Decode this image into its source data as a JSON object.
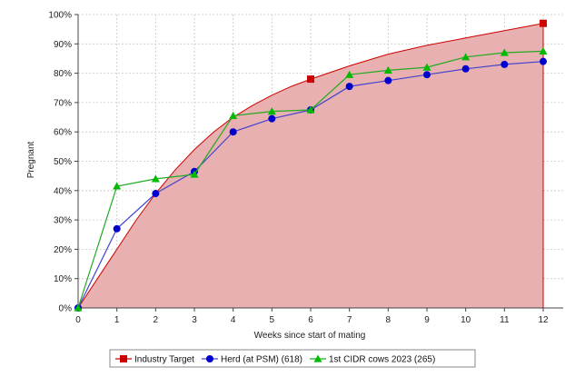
{
  "chart_data": {
    "type": "line",
    "title": "",
    "xlabel": "Weeks since start of mating",
    "ylabel": "Pregnant",
    "xlim": [
      0,
      12
    ],
    "ylim": [
      0,
      100
    ],
    "x_ticks": [
      "0",
      "1",
      "2",
      "3",
      "4",
      "5",
      "6",
      "7",
      "8",
      "9",
      "10",
      "11",
      "12"
    ],
    "y_ticks": [
      "0%",
      "10%",
      "20%",
      "30%",
      "40%",
      "50%",
      "60%",
      "70%",
      "80%",
      "90%",
      "100%"
    ],
    "grid": true,
    "legend_position": "bottom",
    "series": [
      {
        "name": "Industry Target",
        "kind": "area-curve",
        "color": "#cc0000",
        "fill": "#e8b0b0",
        "marker": "square",
        "curve": [
          {
            "x": 0,
            "y": 0
          },
          {
            "x": 0.5,
            "y": 10
          },
          {
            "x": 1,
            "y": 20
          },
          {
            "x": 1.5,
            "y": 30
          },
          {
            "x": 2,
            "y": 39
          },
          {
            "x": 2.5,
            "y": 47
          },
          {
            "x": 3,
            "y": 54
          },
          {
            "x": 3.5,
            "y": 60
          },
          {
            "x": 4,
            "y": 65
          },
          {
            "x": 4.5,
            "y": 69
          },
          {
            "x": 5,
            "y": 72.5
          },
          {
            "x": 5.5,
            "y": 75.5
          },
          {
            "x": 6,
            "y": 78
          },
          {
            "x": 7,
            "y": 82.5
          },
          {
            "x": 8,
            "y": 86.5
          },
          {
            "x": 9,
            "y": 89.5
          },
          {
            "x": 10,
            "y": 92
          },
          {
            "x": 11,
            "y": 94.5
          },
          {
            "x": 12,
            "y": 97
          }
        ],
        "markers": [
          {
            "x": 6,
            "y": 78
          },
          {
            "x": 12,
            "y": 97
          }
        ]
      },
      {
        "name": "Herd (at PSM) (618)",
        "kind": "line",
        "color": "#0000cc",
        "line_color": "#4444cc",
        "marker": "circle",
        "points": [
          {
            "x": 0,
            "y": 0
          },
          {
            "x": 1,
            "y": 27
          },
          {
            "x": 2,
            "y": 39
          },
          {
            "x": 3,
            "y": 46.5
          },
          {
            "x": 4,
            "y": 60
          },
          {
            "x": 5,
            "y": 64.5
          },
          {
            "x": 6,
            "y": 67.5
          },
          {
            "x": 7,
            "y": 75.5
          },
          {
            "x": 8,
            "y": 77.5
          },
          {
            "x": 9,
            "y": 79.5
          },
          {
            "x": 10,
            "y": 81.5
          },
          {
            "x": 11,
            "y": 83
          },
          {
            "x": 12,
            "y": 84
          }
        ]
      },
      {
        "name": "1st CIDR cows 2023 (265)",
        "kind": "line",
        "color": "#00bb00",
        "line_color": "#22aa22",
        "marker": "triangle",
        "points": [
          {
            "x": 0,
            "y": 0
          },
          {
            "x": 1,
            "y": 41.5
          },
          {
            "x": 2,
            "y": 44
          },
          {
            "x": 3,
            "y": 45.5
          },
          {
            "x": 4,
            "y": 65.5
          },
          {
            "x": 5,
            "y": 67
          },
          {
            "x": 6,
            "y": 67.5
          },
          {
            "x": 7,
            "y": 79.5
          },
          {
            "x": 8,
            "y": 81
          },
          {
            "x": 9,
            "y": 82
          },
          {
            "x": 10,
            "y": 85.5
          },
          {
            "x": 11,
            "y": 87
          },
          {
            "x": 12,
            "y": 87.5
          }
        ]
      }
    ]
  }
}
